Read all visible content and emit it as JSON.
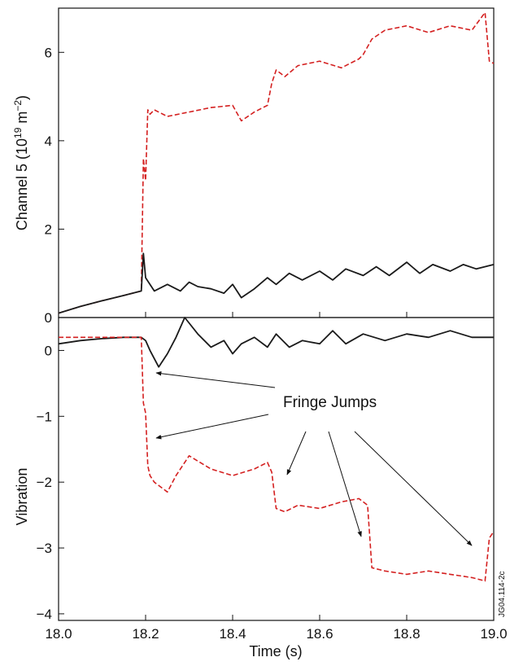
{
  "chart_data": [
    {
      "type": "line",
      "ylabel_main": "Channel 5 (10",
      "ylabel_sup1": "19",
      "ylabel_mid": " m",
      "ylabel_sup2": "−2",
      "ylabel_end": ")",
      "xlim": [
        18.0,
        19.0
      ],
      "ylim": [
        0,
        7
      ],
      "yticks": [
        "0",
        "2",
        "4",
        "6"
      ],
      "ytick_values": [
        0,
        2,
        4,
        6
      ],
      "grid": false,
      "series_colors": [
        "#d42020",
        "#1a1a1a"
      ],
      "series": [
        {
          "style": "dashed",
          "x": [
            18.0,
            18.05,
            18.1,
            18.15,
            18.19,
            18.195,
            18.2,
            18.205,
            18.21,
            18.22,
            18.25,
            18.3,
            18.35,
            18.4,
            18.42,
            18.45,
            18.47,
            18.48,
            18.49,
            18.5,
            18.52,
            18.55,
            18.6,
            18.65,
            18.69,
            18.7,
            18.72,
            18.75,
            18.8,
            18.85,
            18.9,
            18.95,
            18.98,
            18.99,
            19.0
          ],
          "y": [
            0.1,
            0.25,
            0.38,
            0.5,
            0.6,
            3.6,
            3.1,
            4.7,
            4.6,
            4.7,
            4.55,
            4.65,
            4.75,
            4.8,
            4.45,
            4.65,
            4.75,
            4.8,
            5.3,
            5.6,
            5.45,
            5.7,
            5.8,
            5.65,
            5.85,
            5.95,
            6.3,
            6.5,
            6.6,
            6.45,
            6.6,
            6.5,
            6.9,
            5.8,
            5.75
          ]
        },
        {
          "style": "solid",
          "x": [
            18.0,
            18.05,
            18.1,
            18.15,
            18.19,
            18.195,
            18.2,
            18.22,
            18.25,
            18.28,
            18.3,
            18.32,
            18.35,
            18.38,
            18.4,
            18.42,
            18.45,
            18.48,
            18.5,
            18.53,
            18.56,
            18.6,
            18.63,
            18.66,
            18.7,
            18.73,
            18.76,
            18.8,
            18.83,
            18.86,
            18.9,
            18.93,
            18.96,
            19.0
          ],
          "y": [
            0.1,
            0.25,
            0.38,
            0.5,
            0.6,
            1.45,
            0.9,
            0.6,
            0.75,
            0.6,
            0.8,
            0.7,
            0.65,
            0.55,
            0.75,
            0.45,
            0.65,
            0.9,
            0.75,
            1.0,
            0.85,
            1.05,
            0.85,
            1.1,
            0.95,
            1.15,
            0.95,
            1.25,
            1.0,
            1.2,
            1.05,
            1.2,
            1.1,
            1.2
          ]
        }
      ]
    },
    {
      "type": "line",
      "xlabel": "Time (s)",
      "ylabel": "Vibration",
      "xlim": [
        18.0,
        19.0
      ],
      "ylim": [
        -4.1,
        0.5
      ],
      "xticks": [
        "18.0",
        "18.2",
        "18.4",
        "18.6",
        "18.8",
        "19.0"
      ],
      "xtick_values": [
        18.0,
        18.2,
        18.4,
        18.6,
        18.8,
        19.0
      ],
      "yticks": [
        "0",
        "−1",
        "−2",
        "−3",
        "−4"
      ],
      "ytick_values": [
        0,
        -1,
        -2,
        -3,
        -4
      ],
      "grid": false,
      "series_colors": [
        "#1a1a1a",
        "#d42020"
      ],
      "series": [
        {
          "style": "solid",
          "x": [
            18.0,
            18.05,
            18.1,
            18.15,
            18.19,
            18.2,
            18.21,
            18.23,
            18.25,
            18.27,
            18.29,
            18.32,
            18.35,
            18.38,
            18.4,
            18.42,
            18.45,
            18.48,
            18.5,
            18.53,
            18.56,
            18.6,
            18.63,
            18.66,
            18.7,
            18.75,
            18.8,
            18.85,
            18.9,
            18.95,
            19.0
          ],
          "y": [
            0.1,
            0.15,
            0.18,
            0.2,
            0.2,
            0.15,
            0.0,
            -0.25,
            -0.05,
            0.2,
            0.5,
            0.25,
            0.05,
            0.15,
            -0.05,
            0.1,
            0.2,
            0.05,
            0.25,
            0.05,
            0.15,
            0.1,
            0.3,
            0.1,
            0.25,
            0.15,
            0.25,
            0.2,
            0.3,
            0.2,
            0.2
          ]
        },
        {
          "style": "dashed",
          "x": [
            18.0,
            18.19,
            18.195,
            18.2,
            18.205,
            18.21,
            18.22,
            18.25,
            18.27,
            18.3,
            18.35,
            18.4,
            18.45,
            18.48,
            18.49,
            18.5,
            18.52,
            18.55,
            18.6,
            18.65,
            18.69,
            18.7,
            18.71,
            18.72,
            18.75,
            18.8,
            18.85,
            18.9,
            18.95,
            18.98,
            18.99,
            19.0
          ],
          "y": [
            0.2,
            0.2,
            -0.8,
            -0.95,
            -1.75,
            -1.9,
            -2.0,
            -2.15,
            -1.9,
            -1.6,
            -1.8,
            -1.9,
            -1.8,
            -1.7,
            -1.85,
            -2.4,
            -2.45,
            -2.35,
            -2.4,
            -2.3,
            -2.25,
            -2.3,
            -2.35,
            -3.3,
            -3.35,
            -3.4,
            -3.35,
            -3.4,
            -3.45,
            -3.5,
            -2.85,
            -2.75
          ]
        }
      ],
      "annotation_text": "Fringe Jumps"
    }
  ],
  "figure_id": "JG04.114-2c"
}
